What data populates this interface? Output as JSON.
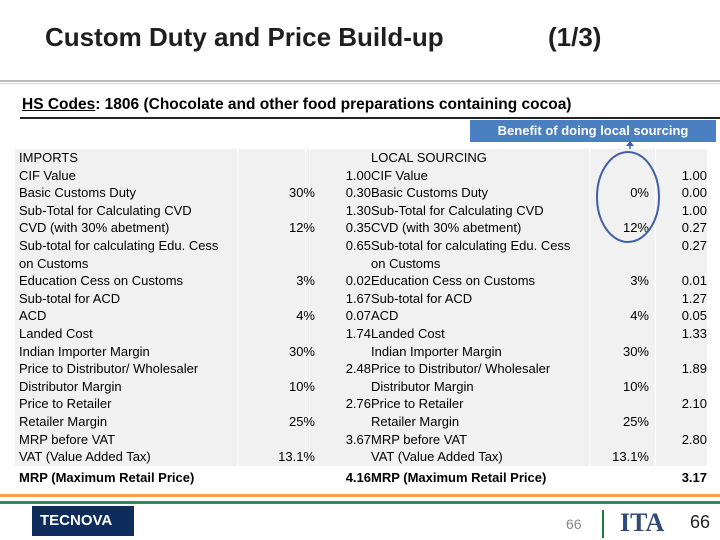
{
  "slide": {
    "title": "Custom Duty and Price Build-up",
    "page_marker": "(1/3)",
    "hs_label": "HS Codes",
    "hs_text": ": 1806 (Chocolate and other food preparations containing cocoa)",
    "callout": "Benefit of doing local sourcing",
    "page_number": "66",
    "footer_logo_left": "TECNOVA",
    "footer_logo_right": "ITA"
  },
  "imports": {
    "heading": "IMPORTS",
    "rows": [
      {
        "label": "CIF Value",
        "pct": "",
        "val": "1.00"
      },
      {
        "label": "Basic Customs Duty",
        "pct": "30%",
        "val": "0.30"
      },
      {
        "label": "Sub-Total for Calculating CVD",
        "pct": "",
        "val": "1.30"
      },
      {
        "label": "CVD (with 30% abetment)",
        "pct": "12%",
        "val": "0.35"
      },
      {
        "label": "Sub-total for calculating Edu. Cess",
        "pct": "",
        "val": "0.65"
      },
      {
        "label": "on Customs",
        "pct": "",
        "val": ""
      },
      {
        "label": "Education Cess on Customs",
        "pct": "3%",
        "val": "0.02"
      },
      {
        "label": "Sub-total for ACD",
        "pct": "",
        "val": "1.67"
      },
      {
        "label": "ACD",
        "pct": "4%",
        "val": "0.07"
      },
      {
        "label": "Landed Cost",
        "pct": "",
        "val": "1.74"
      },
      {
        "label": "Indian Importer Margin",
        "pct": "30%",
        "val": ""
      },
      {
        "label": "Price to Distributor/ Wholesaler",
        "pct": "",
        "val": "2.48"
      },
      {
        "label": "Distributor Margin",
        "pct": "10%",
        "val": ""
      },
      {
        "label": "Price to Retailer",
        "pct": "",
        "val": "2.76"
      },
      {
        "label": "Retailer Margin",
        "pct": "25%",
        "val": ""
      },
      {
        "label": "MRP before VAT",
        "pct": "",
        "val": "3.67"
      },
      {
        "label": "VAT (Value Added Tax)",
        "pct": "13.1%",
        "val": ""
      }
    ],
    "mrp_label": "MRP (Maximum Retail Price)",
    "mrp_val": "4.16"
  },
  "local": {
    "heading": "LOCAL SOURCING",
    "rows": [
      {
        "label": "CIF Value",
        "pct": "",
        "val": "1.00"
      },
      {
        "label": "Basic Customs Duty",
        "pct": "0%",
        "val": "0.00"
      },
      {
        "label": "Sub-Total for Calculating CVD",
        "pct": "",
        "val": "1.00"
      },
      {
        "label": "CVD (with 30% abetment)",
        "pct": "12%",
        "val": "0.27"
      },
      {
        "label": "Sub-total for calculating Edu. Cess",
        "pct": "",
        "val": "0.27"
      },
      {
        "label": "on Customs",
        "pct": "",
        "val": ""
      },
      {
        "label": "Education Cess on Customs",
        "pct": "3%",
        "val": "0.01"
      },
      {
        "label": "Sub-total for ACD",
        "pct": "",
        "val": "1.27"
      },
      {
        "label": "ACD",
        "pct": "4%",
        "val": "0.05"
      },
      {
        "label": "Landed Cost",
        "pct": "",
        "val": "1.33"
      },
      {
        "label": "Indian Importer Margin",
        "pct": "30%",
        "val": ""
      },
      {
        "label": "Price to Distributor/ Wholesaler",
        "pct": "",
        "val": "1.89"
      },
      {
        "label": "Distributor Margin",
        "pct": "10%",
        "val": ""
      },
      {
        "label": "Price to Retailer",
        "pct": "",
        "val": "2.10"
      },
      {
        "label": "Retailer Margin",
        "pct": "25%",
        "val": ""
      },
      {
        "label": "MRP before VAT",
        "pct": "",
        "val": "2.80"
      },
      {
        "label": "VAT (Value Added Tax)",
        "pct": "13.1%",
        "val": ""
      }
    ],
    "mrp_label": "MRP (Maximum Retail Price)",
    "mrp_val": "3.17"
  },
  "colors": {
    "callout_bg": "#4a7fc1",
    "circle": "#3f5fa8",
    "stripe_orange": "#f2a04a",
    "stripe_green": "#2e8b57"
  }
}
